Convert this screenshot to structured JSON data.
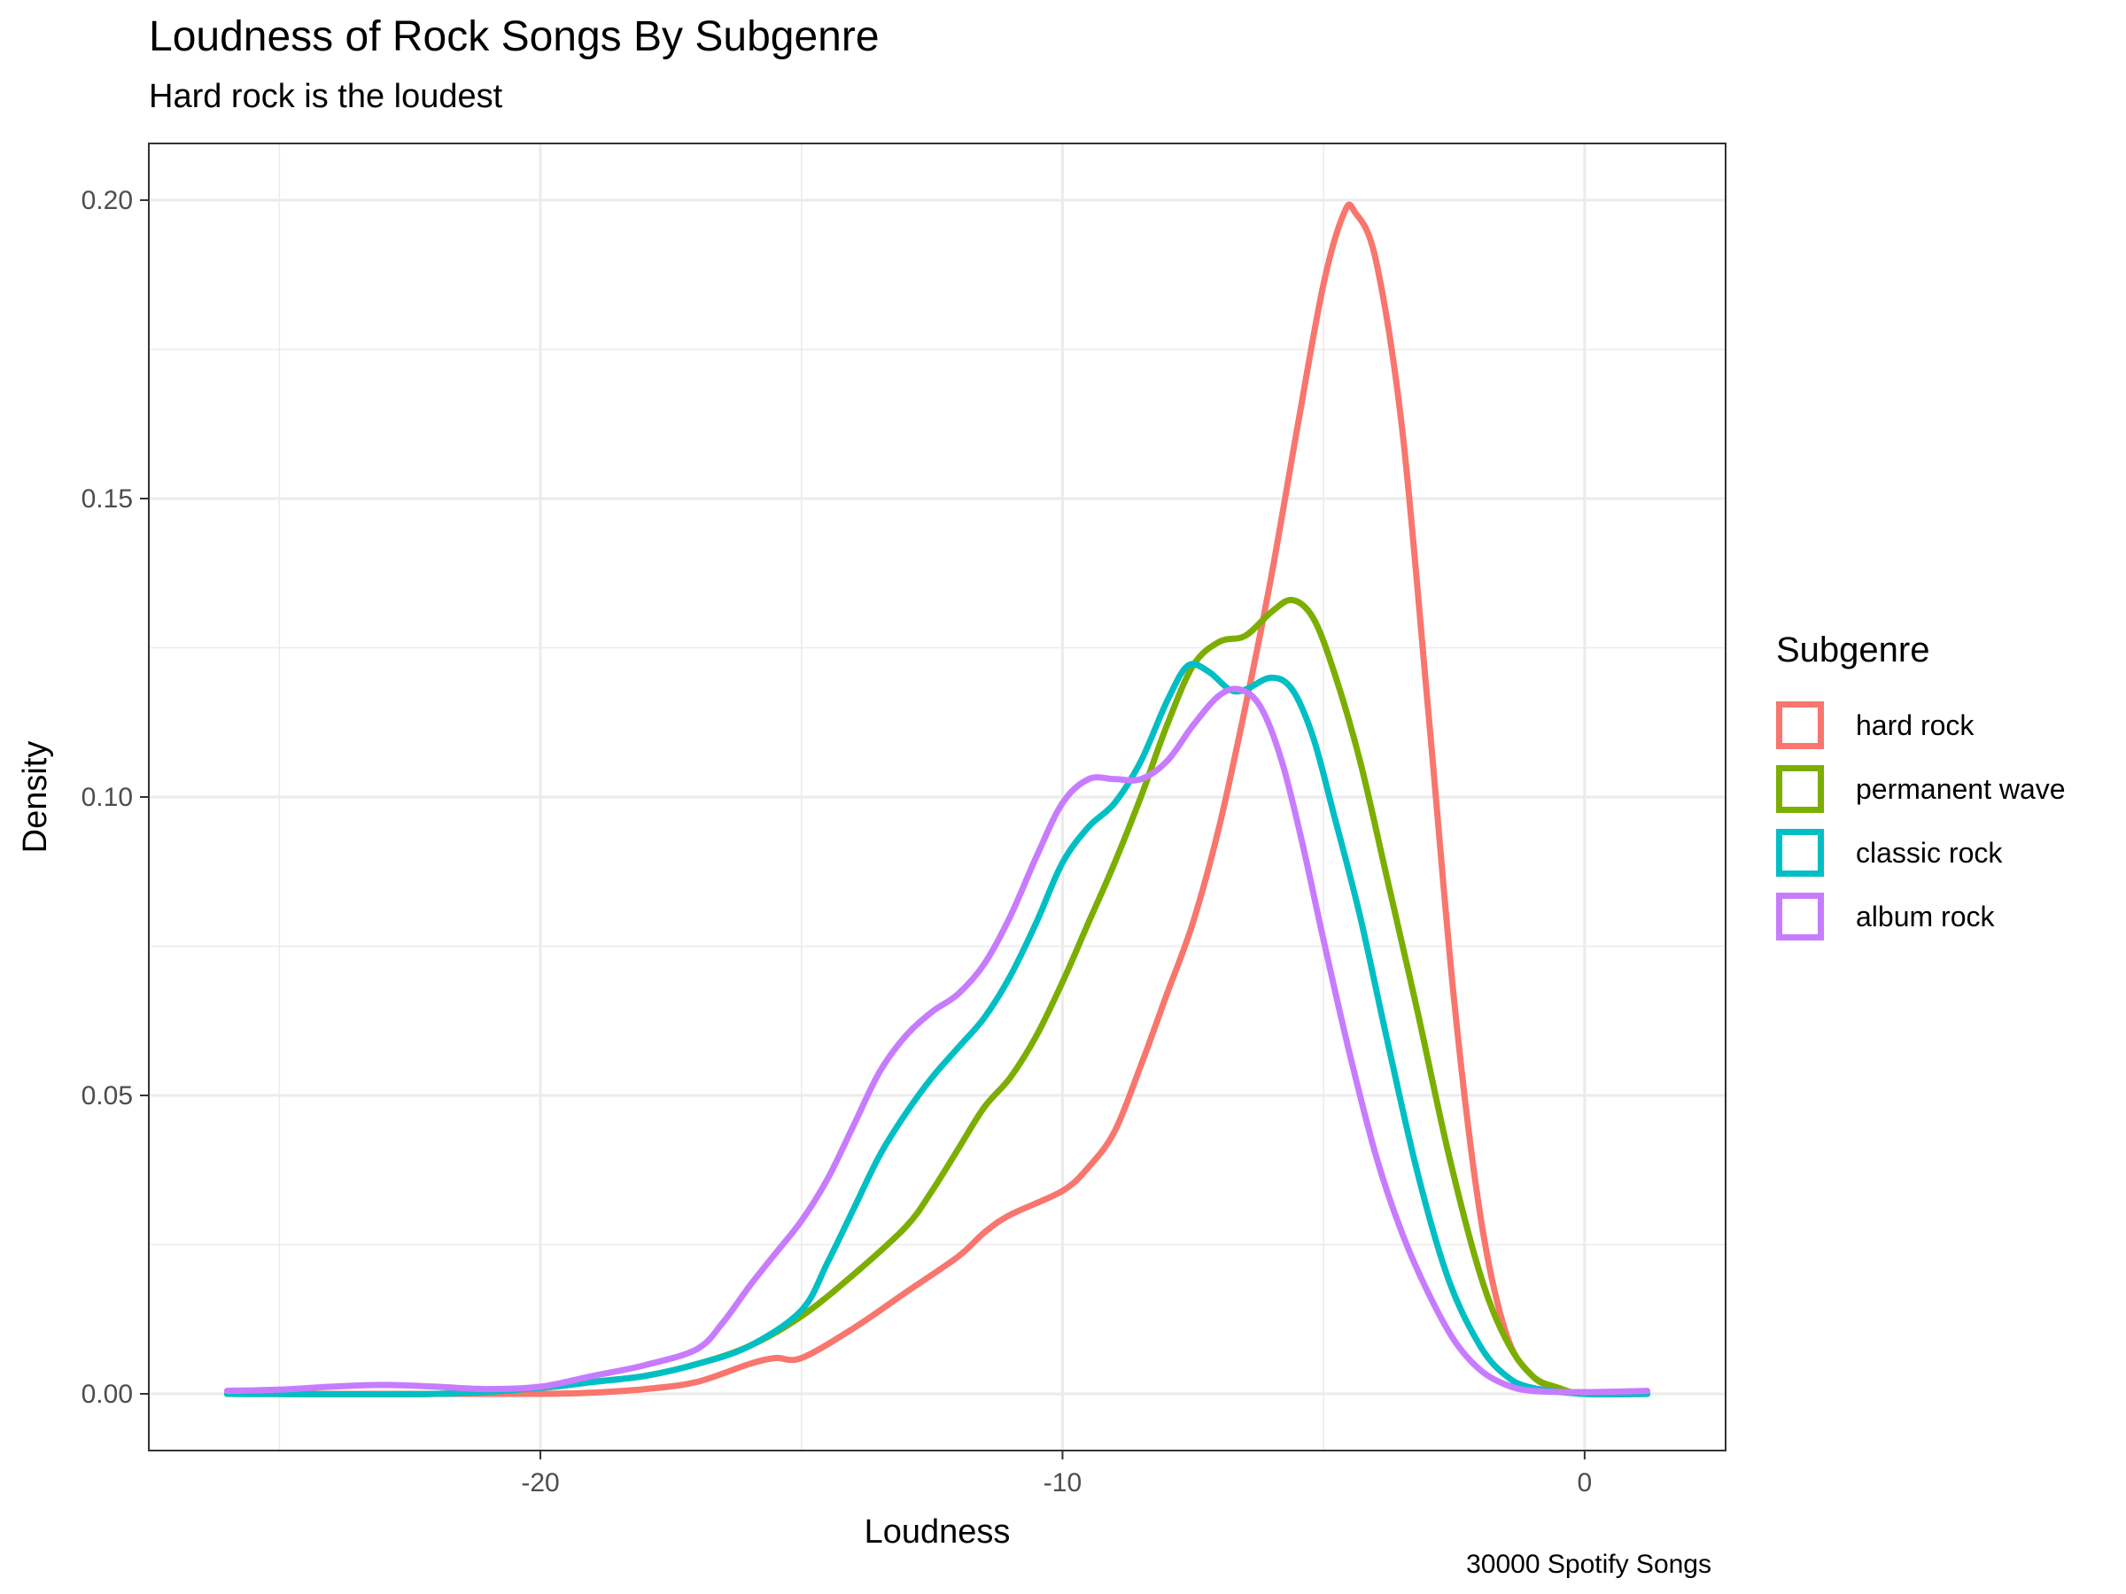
{
  "title": "Loudness of Rock Songs By Subgenre",
  "subtitle": "Hard rock is the loudest",
  "caption": "30000 Spotify Songs",
  "chart_data": {
    "type": "line",
    "xlabel": "Loudness",
    "ylabel": "Density",
    "xlim": [
      -27.5,
      2.7
    ],
    "ylim": [
      -0.0095,
      0.2095
    ],
    "x_ticks": [
      -20,
      -10,
      0
    ],
    "x_tick_labels": [
      "-20",
      "-10",
      "0"
    ],
    "y_ticks": [
      0,
      0.05,
      0.1,
      0.15,
      0.2
    ],
    "y_tick_labels": [
      "0.00",
      "0.05",
      "0.10",
      "0.15",
      "0.20"
    ],
    "grid": true,
    "legend": {
      "title": "Subgenre",
      "position": "right"
    },
    "series": [
      {
        "name": "hard rock",
        "color": "#F8766D",
        "points": [
          [
            -26,
            0
          ],
          [
            -22,
            0
          ],
          [
            -20,
            0
          ],
          [
            -19,
            0.0002
          ],
          [
            -18,
            0.0008
          ],
          [
            -17,
            0.002
          ],
          [
            -16,
            0.005
          ],
          [
            -15.5,
            0.006
          ],
          [
            -15,
            0.006
          ],
          [
            -14,
            0.011
          ],
          [
            -13,
            0.017
          ],
          [
            -12,
            0.023
          ],
          [
            -11.5,
            0.027
          ],
          [
            -11,
            0.03
          ],
          [
            -10,
            0.034
          ],
          [
            -9.5,
            0.038
          ],
          [
            -9,
            0.044
          ],
          [
            -8.5,
            0.055
          ],
          [
            -8,
            0.067
          ],
          [
            -7.5,
            0.079
          ],
          [
            -7,
            0.095
          ],
          [
            -6.5,
            0.115
          ],
          [
            -6,
            0.137
          ],
          [
            -5.5,
            0.162
          ],
          [
            -5,
            0.186
          ],
          [
            -4.6,
            0.198
          ],
          [
            -4.4,
            0.198
          ],
          [
            -4,
            0.19
          ],
          [
            -3.5,
            0.162
          ],
          [
            -3,
            0.115
          ],
          [
            -2.5,
            0.066
          ],
          [
            -2,
            0.03
          ],
          [
            -1.5,
            0.01
          ],
          [
            -1,
            0.003
          ],
          [
            -0.5,
            0.0008
          ],
          [
            0,
            0
          ],
          [
            1.2,
            0
          ]
        ]
      },
      {
        "name": "permanent wave",
        "color": "#7CAE00",
        "points": [
          [
            -26,
            0
          ],
          [
            -22,
            0
          ],
          [
            -20,
            0.001
          ],
          [
            -19,
            0.002
          ],
          [
            -18,
            0.003
          ],
          [
            -17,
            0.005
          ],
          [
            -16,
            0.008
          ],
          [
            -15,
            0.013
          ],
          [
            -14,
            0.02
          ],
          [
            -13,
            0.028
          ],
          [
            -12.5,
            0.034
          ],
          [
            -12,
            0.041
          ],
          [
            -11.5,
            0.048
          ],
          [
            -11,
            0.053
          ],
          [
            -10.5,
            0.06
          ],
          [
            -10,
            0.069
          ],
          [
            -9.5,
            0.079
          ],
          [
            -9,
            0.089
          ],
          [
            -8.5,
            0.1
          ],
          [
            -8,
            0.112
          ],
          [
            -7.5,
            0.122
          ],
          [
            -7,
            0.126
          ],
          [
            -6.5,
            0.127
          ],
          [
            -6,
            0.131
          ],
          [
            -5.6,
            0.133
          ],
          [
            -5.2,
            0.13
          ],
          [
            -4.8,
            0.121
          ],
          [
            -4.3,
            0.106
          ],
          [
            -3.8,
            0.087
          ],
          [
            -3.2,
            0.064
          ],
          [
            -2.6,
            0.04
          ],
          [
            -2,
            0.02
          ],
          [
            -1.5,
            0.009
          ],
          [
            -1,
            0.003
          ],
          [
            -0.5,
            0.001
          ],
          [
            0,
            0
          ],
          [
            1.2,
            0
          ]
        ]
      },
      {
        "name": "classic rock",
        "color": "#00BFC4",
        "points": [
          [
            -26,
            0
          ],
          [
            -22,
            0
          ],
          [
            -20,
            0.001
          ],
          [
            -19,
            0.002
          ],
          [
            -18,
            0.003
          ],
          [
            -17,
            0.005
          ],
          [
            -16,
            0.008
          ],
          [
            -15,
            0.014
          ],
          [
            -14.5,
            0.022
          ],
          [
            -14,
            0.031
          ],
          [
            -13.5,
            0.04
          ],
          [
            -13,
            0.047
          ],
          [
            -12.5,
            0.053
          ],
          [
            -12,
            0.058
          ],
          [
            -11.5,
            0.063
          ],
          [
            -11,
            0.07
          ],
          [
            -10.5,
            0.079
          ],
          [
            -10,
            0.089
          ],
          [
            -9.5,
            0.095
          ],
          [
            -9,
            0.099
          ],
          [
            -8.5,
            0.106
          ],
          [
            -8,
            0.116
          ],
          [
            -7.6,
            0.122
          ],
          [
            -7.2,
            0.121
          ],
          [
            -6.8,
            0.118
          ],
          [
            -6.5,
            0.118
          ],
          [
            -6,
            0.12
          ],
          [
            -5.6,
            0.118
          ],
          [
            -5.2,
            0.11
          ],
          [
            -4.8,
            0.097
          ],
          [
            -4.3,
            0.08
          ],
          [
            -3.8,
            0.06
          ],
          [
            -3.2,
            0.037
          ],
          [
            -2.6,
            0.019
          ],
          [
            -2,
            0.008
          ],
          [
            -1.5,
            0.003
          ],
          [
            -1,
            0.001
          ],
          [
            0,
            0
          ],
          [
            1.2,
            0
          ]
        ]
      },
      {
        "name": "album rock",
        "color": "#C77CFF",
        "points": [
          [
            -26,
            0.0005
          ],
          [
            -25,
            0.0007
          ],
          [
            -24,
            0.0012
          ],
          [
            -23,
            0.0015
          ],
          [
            -22,
            0.0012
          ],
          [
            -21,
            0.0008
          ],
          [
            -20,
            0.0012
          ],
          [
            -19,
            0.003
          ],
          [
            -18,
            0.0048
          ],
          [
            -17,
            0.0075
          ],
          [
            -16.5,
            0.012
          ],
          [
            -16,
            0.018
          ],
          [
            -15.5,
            0.0235
          ],
          [
            -15,
            0.029
          ],
          [
            -14.5,
            0.036
          ],
          [
            -14,
            0.045
          ],
          [
            -13.5,
            0.054
          ],
          [
            -13,
            0.06
          ],
          [
            -12.5,
            0.064
          ],
          [
            -12,
            0.067
          ],
          [
            -11.5,
            0.072
          ],
          [
            -11,
            0.08
          ],
          [
            -10.5,
            0.09
          ],
          [
            -10,
            0.099
          ],
          [
            -9.5,
            0.103
          ],
          [
            -9,
            0.103
          ],
          [
            -8.5,
            0.103
          ],
          [
            -8,
            0.106
          ],
          [
            -7.5,
            0.112
          ],
          [
            -7,
            0.117
          ],
          [
            -6.6,
            0.118
          ],
          [
            -6.2,
            0.115
          ],
          [
            -5.8,
            0.106
          ],
          [
            -5.4,
            0.092
          ],
          [
            -5,
            0.076
          ],
          [
            -4.5,
            0.057
          ],
          [
            -4,
            0.04
          ],
          [
            -3.5,
            0.027
          ],
          [
            -3,
            0.017
          ],
          [
            -2.5,
            0.009
          ],
          [
            -2,
            0.004
          ],
          [
            -1.5,
            0.0015
          ],
          [
            -1,
            0.0005
          ],
          [
            0,
            0.0003
          ],
          [
            1.2,
            0.0005
          ]
        ]
      }
    ]
  }
}
